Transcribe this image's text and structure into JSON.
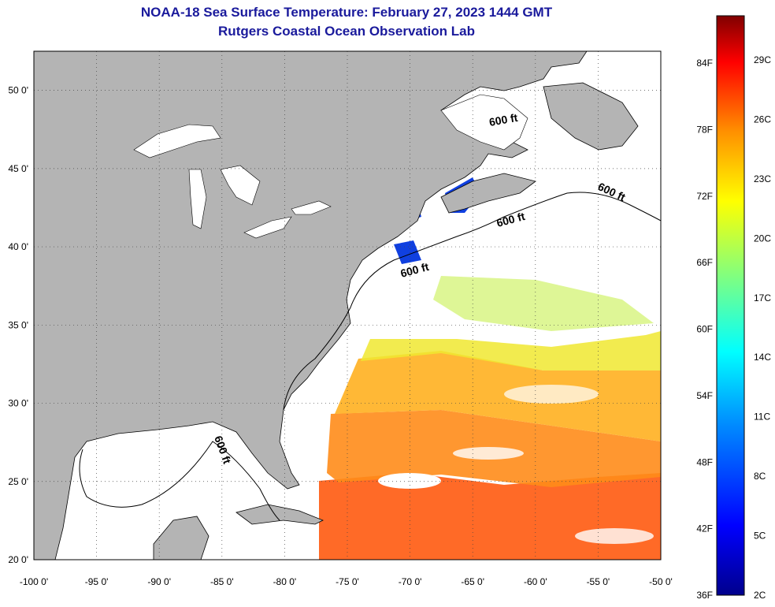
{
  "title_line1": "NOAA-18 Sea Surface Temperature:  February 27, 2023 1444 GMT",
  "title_line2": "Rutgers Coastal Ocean Observation Lab",
  "map": {
    "lon_range": [
      -100,
      -50
    ],
    "lat_range": [
      20,
      52.5
    ],
    "lon_ticks": [
      "-100 0'",
      "-95 0'",
      "-90 0'",
      "-85 0'",
      "-80 0'",
      "-75 0'",
      "-70 0'",
      "-65 0'",
      "-60 0'",
      "-55 0'",
      "-50 0'"
    ],
    "lat_ticks": [
      "20 0'",
      "25 0'",
      "30 0'",
      "35 0'",
      "40 0'",
      "45 0'",
      "50 0'"
    ],
    "contour_labels": [
      "600 ft",
      "600 ft",
      "600 ft",
      "600 ft",
      "600 ft"
    ],
    "land_color": "#b4b4b4",
    "grid": "dotted"
  },
  "colorbar": {
    "f_labels": [
      "84F",
      "78F",
      "72F",
      "66F",
      "60F",
      "54F",
      "48F",
      "42F",
      "36F"
    ],
    "c_labels": [
      "29C",
      "26C",
      "23C",
      "20C",
      "17C",
      "14C",
      "11C",
      "8C",
      "5C",
      "2C"
    ]
  }
}
